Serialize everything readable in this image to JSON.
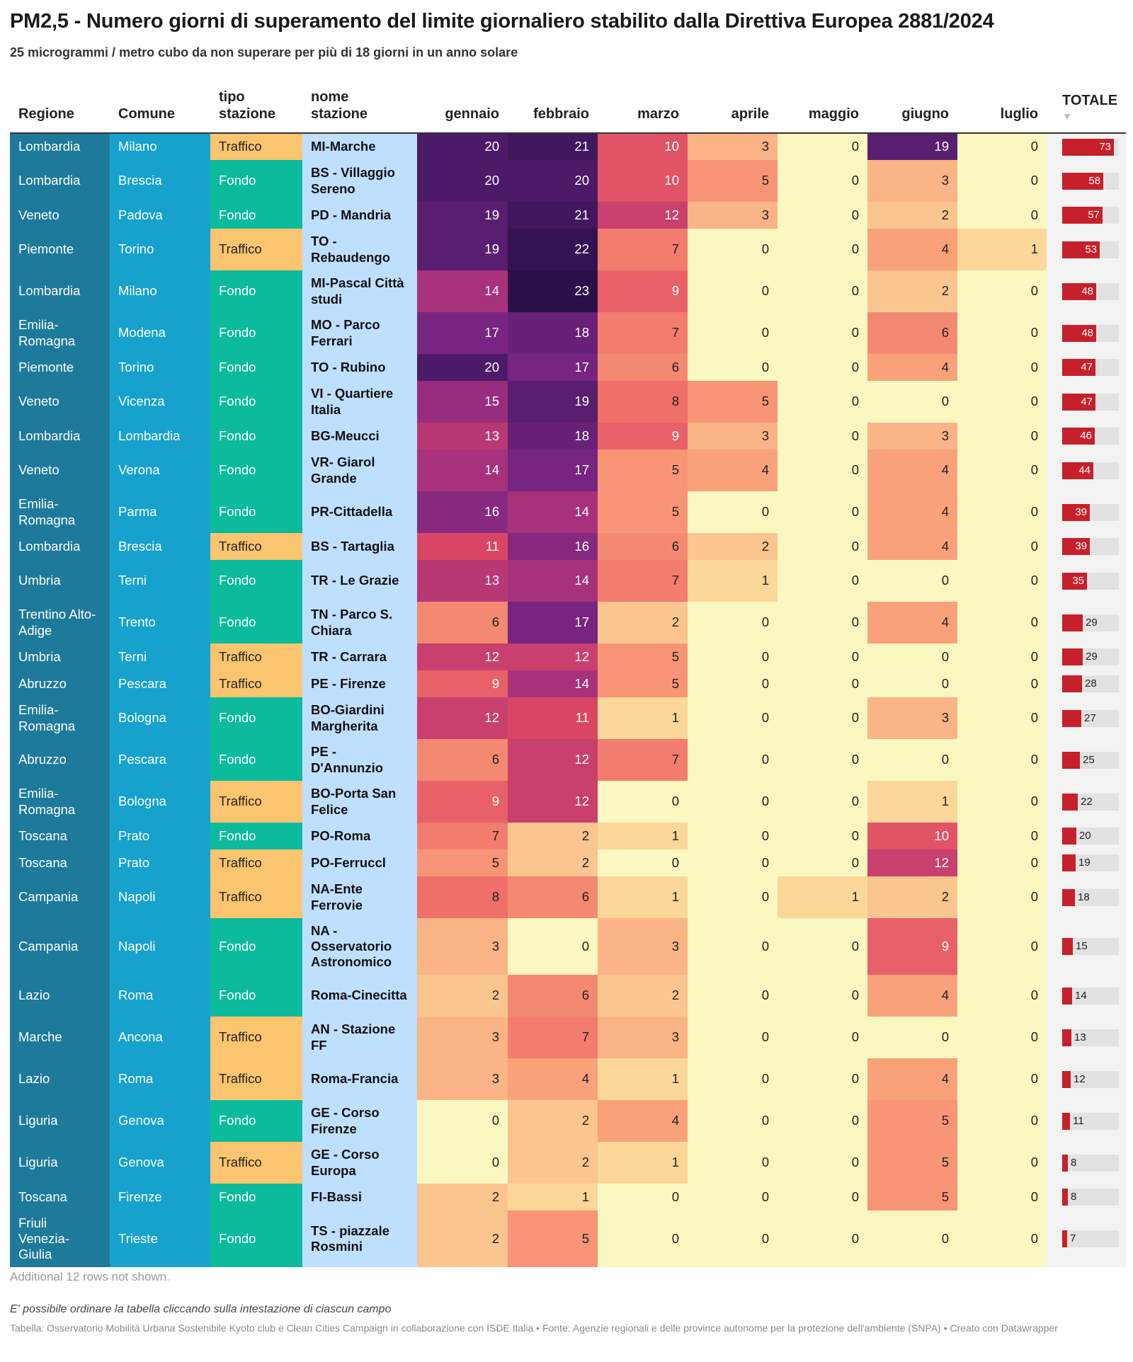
{
  "title": "PM2,5 - Numero giorni di superamento del limite giornaliero stabilito dalla Direttiva Europea 2881/2024",
  "subtitle": "25 microgrammi / metro cubo da non superare per più di 18 giorni in un anno solare",
  "footer": {
    "note": "Additional 12 rows not shown.",
    "hint": "E' possibile ordinare la tabella cliccando sulla intestazione di ciascun campo",
    "source": "Tabella: Osservatorio Mobilità Urbana Sostenibile Kyoto club e Clean Cities Campaign in collaborazione con ISDE Italia • Fonte: Agenzie regionali e delle province autonome per la protezione dell'ambiente (SNPA) • Creato con Datawrapper"
  },
  "colors": {
    "regione": "#1d7a9a",
    "comune": "#16a2cc",
    "traffico": "#fbc46f",
    "fondo": "#0cbb9c",
    "nome": "#bfdfff",
    "bar": "#c6202b",
    "heatmap_scale": [
      "#fbf7c0",
      "#fbd79a",
      "#f9a27a",
      "#ef6f69",
      "#d94665",
      "#a8317c",
      "#772580",
      "#4c1a68",
      "#2a1048"
    ]
  },
  "icons": {
    "sort": "sort-down-icon"
  },
  "chart_data": {
    "type": "table",
    "title": "PM2,5 - Numero giorni di superamento del limite giornaliero stabilito dalla Direttiva Europea 2881/2024",
    "subtitle": "25 microgrammi / metro cubo da non superare per più di 18 giorni in un anno solare",
    "columns": [
      "Regione",
      "Comune",
      "tipo stazione",
      "nome stazione",
      "gennaio",
      "febbraio",
      "marzo",
      "aprile",
      "maggio",
      "giugno",
      "luglio",
      "TOTALE"
    ],
    "month_columns": [
      "gennaio",
      "febbraio",
      "marzo",
      "aprile",
      "maggio",
      "giugno",
      "luglio"
    ],
    "sorted_by": "TOTALE",
    "sort_order": "descending",
    "rows": [
      {
        "regione": "Lombardia",
        "comune": "Milano",
        "tipo": "Traffico",
        "nome": "MI-Marche",
        "mesi": [
          20,
          21,
          10,
          3,
          0,
          19,
          0
        ],
        "totale": 73
      },
      {
        "regione": "Lombardia",
        "comune": "Brescia",
        "tipo": "Fondo",
        "nome": "BS - Villaggio Sereno",
        "mesi": [
          20,
          20,
          10,
          5,
          0,
          3,
          0
        ],
        "totale": 58
      },
      {
        "regione": "Veneto",
        "comune": "Padova",
        "tipo": "Fondo",
        "nome": "PD - Mandria",
        "mesi": [
          19,
          21,
          12,
          3,
          0,
          2,
          0
        ],
        "totale": 57
      },
      {
        "regione": "Piemonte",
        "comune": "Torino",
        "tipo": "Traffico",
        "nome": "TO - Rebaudengo",
        "mesi": [
          19,
          22,
          7,
          0,
          0,
          4,
          1
        ],
        "totale": 53
      },
      {
        "regione": "Lombardia",
        "comune": "Milano",
        "tipo": "Fondo",
        "nome": "MI-Pascal Città studi",
        "mesi": [
          14,
          23,
          9,
          0,
          0,
          2,
          0
        ],
        "totale": 48
      },
      {
        "regione": "Emilia-Romagna",
        "comune": "Modena",
        "tipo": "Fondo",
        "nome": "MO - Parco Ferrari",
        "mesi": [
          17,
          18,
          7,
          0,
          0,
          6,
          0
        ],
        "totale": 48
      },
      {
        "regione": "Piemonte",
        "comune": "Torino",
        "tipo": "Fondo",
        "nome": "TO - Rubino",
        "mesi": [
          20,
          17,
          6,
          0,
          0,
          4,
          0
        ],
        "totale": 47
      },
      {
        "regione": "Veneto",
        "comune": "Vicenza",
        "tipo": "Fondo",
        "nome": "VI - Quartiere Italia",
        "mesi": [
          15,
          19,
          8,
          5,
          0,
          0,
          0
        ],
        "totale": 47
      },
      {
        "regione": "Lombardia",
        "comune": "Lombardia",
        "tipo": "Fondo",
        "nome": "BG-Meucci",
        "mesi": [
          13,
          18,
          9,
          3,
          0,
          3,
          0
        ],
        "totale": 46
      },
      {
        "regione": "Veneto",
        "comune": "Verona",
        "tipo": "Fondo",
        "nome": "VR- Giarol Grande",
        "mesi": [
          14,
          17,
          5,
          4,
          0,
          4,
          0
        ],
        "totale": 44
      },
      {
        "regione": "Emilia-Romagna",
        "comune": "Parma",
        "tipo": "Fondo",
        "nome": "PR-Cittadella",
        "mesi": [
          16,
          14,
          5,
          0,
          0,
          4,
          0
        ],
        "totale": 39
      },
      {
        "regione": "Lombardia",
        "comune": "Brescia",
        "tipo": "Traffico",
        "nome": "BS - Tartaglia",
        "mesi": [
          11,
          16,
          6,
          2,
          0,
          4,
          0
        ],
        "totale": 39
      },
      {
        "regione": "Umbria",
        "comune": "Terni",
        "tipo": "Fondo",
        "nome": "TR - Le Grazie",
        "mesi": [
          13,
          14,
          7,
          1,
          0,
          0,
          0
        ],
        "totale": 35
      },
      {
        "regione": "Trentino Alto-Adige",
        "comune": "Trento",
        "tipo": "Fondo",
        "nome": "TN - Parco S. Chiara",
        "mesi": [
          6,
          17,
          2,
          0,
          0,
          4,
          0
        ],
        "totale": 29
      },
      {
        "regione": "Umbria",
        "comune": "Terni",
        "tipo": "Traffico",
        "nome": "TR - Carrara",
        "mesi": [
          12,
          12,
          5,
          0,
          0,
          0,
          0
        ],
        "totale": 29
      },
      {
        "regione": "Abruzzo",
        "comune": "Pescara",
        "tipo": "Traffico",
        "nome": "PE - Firenze",
        "mesi": [
          9,
          14,
          5,
          0,
          0,
          0,
          0
        ],
        "totale": 28
      },
      {
        "regione": "Emilia-Romagna",
        "comune": "Bologna",
        "tipo": "Fondo",
        "nome": "BO-Giardini Margherita",
        "mesi": [
          12,
          11,
          1,
          0,
          0,
          3,
          0
        ],
        "totale": 27
      },
      {
        "regione": "Abruzzo",
        "comune": "Pescara",
        "tipo": "Fondo",
        "nome": "PE - D'Annunzio",
        "mesi": [
          6,
          12,
          7,
          0,
          0,
          0,
          0
        ],
        "totale": 25
      },
      {
        "regione": "Emilia-Romagna",
        "comune": "Bologna",
        "tipo": "Traffico",
        "nome": "BO-Porta San Felice",
        "mesi": [
          9,
          12,
          0,
          0,
          0,
          1,
          0
        ],
        "totale": 22
      },
      {
        "regione": "Toscana",
        "comune": "Prato",
        "tipo": "Fondo",
        "nome": "PO-Roma",
        "mesi": [
          7,
          2,
          1,
          0,
          0,
          10,
          0
        ],
        "totale": 20
      },
      {
        "regione": "Toscana",
        "comune": "Prato",
        "tipo": "Traffico",
        "nome": "PO-Ferruccl",
        "mesi": [
          5,
          2,
          0,
          0,
          0,
          12,
          0
        ],
        "totale": 19
      },
      {
        "regione": "Campania",
        "comune": "Napoli",
        "tipo": "Traffico",
        "nome": "NA-Ente Ferrovie",
        "mesi": [
          8,
          6,
          1,
          0,
          1,
          2,
          0
        ],
        "totale": 18
      },
      {
        "regione": "Campania",
        "comune": "Napoli",
        "tipo": "Fondo",
        "nome": "NA - Osservatorio Astronomico",
        "mesi": [
          3,
          0,
          3,
          0,
          0,
          9,
          0
        ],
        "totale": 15
      },
      {
        "regione": "Lazio",
        "comune": "Roma",
        "tipo": "Fondo",
        "nome": "Roma-Cinecitta",
        "mesi": [
          2,
          6,
          2,
          0,
          0,
          4,
          0
        ],
        "totale": 14
      },
      {
        "regione": "Marche",
        "comune": "Ancona",
        "tipo": "Traffico",
        "nome": "AN - Stazione FF",
        "mesi": [
          3,
          7,
          3,
          0,
          0,
          0,
          0
        ],
        "totale": 13
      },
      {
        "regione": "Lazio",
        "comune": "Roma",
        "tipo": "Traffico",
        "nome": "Roma-Francia",
        "mesi": [
          3,
          4,
          1,
          0,
          0,
          4,
          0
        ],
        "totale": 12
      },
      {
        "regione": "Liguria",
        "comune": "Genova",
        "tipo": "Fondo",
        "nome": "GE - Corso Firenze",
        "mesi": [
          0,
          2,
          4,
          0,
          0,
          5,
          0
        ],
        "totale": 11
      },
      {
        "regione": "Liguria",
        "comune": "Genova",
        "tipo": "Traffico",
        "nome": "GE - Corso Europa",
        "mesi": [
          0,
          2,
          1,
          0,
          0,
          5,
          0
        ],
        "totale": 8
      },
      {
        "regione": "Toscana",
        "comune": "Firenze",
        "tipo": "Fondo",
        "nome": "FI-Bassi",
        "mesi": [
          2,
          1,
          0,
          0,
          0,
          5,
          0
        ],
        "totale": 8
      },
      {
        "regione": "Friuli Venezia-Giulia",
        "comune": "Trieste",
        "tipo": "Fondo",
        "nome": "TS - piazzale Rosmini",
        "mesi": [
          2,
          5,
          0,
          0,
          0,
          0,
          0
        ],
        "totale": 7
      }
    ]
  }
}
